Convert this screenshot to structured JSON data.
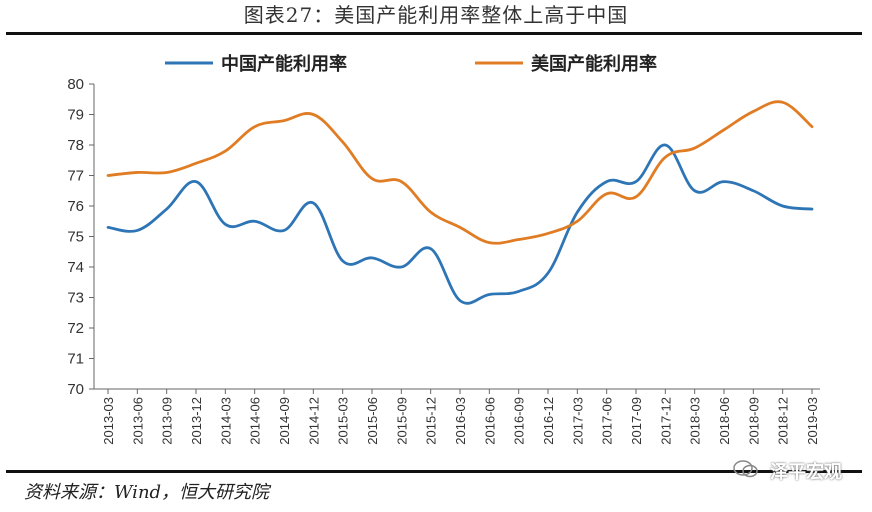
{
  "figure_title": "图表27：美国产能利用率整体上高于中国",
  "source": "资料来源：Wind，恒大研究院",
  "watermark": "泽平宏观",
  "chart_data": {
    "type": "line",
    "title": "",
    "xlabel": "",
    "ylabel": "",
    "ylim": [
      70,
      80
    ],
    "yticks": [
      70,
      71,
      72,
      73,
      74,
      75,
      76,
      77,
      78,
      79,
      80
    ],
    "grid": false,
    "legend_position": "top",
    "categories": [
      "2013-03",
      "2013-06",
      "2013-09",
      "2013-12",
      "2014-03",
      "2014-06",
      "2014-09",
      "2014-12",
      "2015-03",
      "2015-06",
      "2015-09",
      "2015-12",
      "2016-03",
      "2016-06",
      "2016-09",
      "2016-12",
      "2017-03",
      "2017-06",
      "2017-09",
      "2017-12",
      "2018-03",
      "2018-06",
      "2018-09",
      "2018-12",
      "2019-03"
    ],
    "series": [
      {
        "name": "中国产能利用率",
        "color": "#2E75B6",
        "values": [
          75.3,
          75.2,
          75.9,
          76.8,
          75.4,
          75.5,
          75.2,
          76.1,
          74.2,
          74.3,
          74.0,
          74.6,
          72.9,
          73.1,
          73.2,
          73.8,
          75.8,
          76.8,
          76.8,
          78.0,
          76.5,
          76.8,
          76.5,
          76.0,
          75.9
        ]
      },
      {
        "name": "美国产能利用率",
        "color": "#E07C24",
        "values": [
          77.0,
          77.1,
          77.1,
          77.4,
          77.8,
          78.6,
          78.8,
          79.0,
          78.1,
          76.9,
          76.8,
          75.8,
          75.3,
          74.8,
          74.9,
          75.1,
          75.5,
          76.4,
          76.3,
          77.6,
          77.9,
          78.5,
          79.1,
          79.4,
          78.6
        ]
      }
    ]
  }
}
